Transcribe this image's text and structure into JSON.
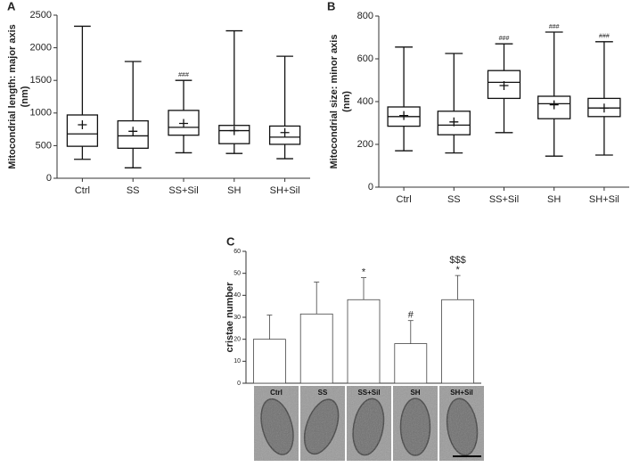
{
  "chart_data": [
    {
      "type": "box",
      "panel": "A",
      "ylabel": [
        "Mitocondrial length: major axis",
        "(nm)"
      ],
      "categories": [
        "Ctrl",
        "SS",
        "SS+Sil",
        "SH",
        "SH+Sil"
      ],
      "min": [
        290,
        160,
        390,
        380,
        300
      ],
      "q1": [
        490,
        460,
        660,
        530,
        520
      ],
      "median": [
        680,
        650,
        780,
        730,
        630
      ],
      "q3": [
        970,
        880,
        1040,
        810,
        800
      ],
      "max": [
        2330,
        1790,
        1500,
        2260,
        1870
      ],
      "mean": [
        820,
        720,
        840,
        730,
        700
      ],
      "annotations": [
        null,
        null,
        [
          "###"
        ],
        null,
        null
      ],
      "ylim": [
        0,
        2500
      ],
      "yticks": [
        0,
        500,
        1000,
        1500,
        2000,
        2500
      ]
    },
    {
      "type": "box",
      "panel": "B",
      "ylabel": [
        "Mitocondrial size: minor axis",
        "(nm)"
      ],
      "categories": [
        "Ctrl",
        "SS",
        "SS+Sil",
        "SH",
        "SH+Sil"
      ],
      "min": [
        170,
        160,
        255,
        145,
        150
      ],
      "q1": [
        285,
        245,
        415,
        320,
        330
      ],
      "median": [
        330,
        290,
        490,
        390,
        370
      ],
      "q3": [
        375,
        355,
        545,
        425,
        415
      ],
      "max": [
        655,
        625,
        670,
        725,
        680
      ],
      "mean": [
        335,
        305,
        475,
        385,
        370
      ],
      "annotations": [
        null,
        null,
        [
          "###"
        ],
        [
          "###"
        ],
        [
          "###"
        ]
      ],
      "ylim": [
        0,
        800
      ],
      "yticks": [
        0,
        200,
        400,
        600,
        800
      ]
    },
    {
      "type": "bar",
      "panel": "C",
      "ylabel": [
        "cristae number"
      ],
      "categories": [
        "Ctrl",
        "SS",
        "SS+Sil",
        "SH",
        "SH+Sil"
      ],
      "values": [
        20,
        31.5,
        38,
        18,
        38
      ],
      "errors": [
        11,
        14.5,
        10,
        10.5,
        11
      ],
      "annotations": [
        null,
        null,
        [
          "*"
        ],
        [
          "#"
        ],
        [
          "$$$",
          "*"
        ]
      ],
      "ylim": [
        0,
        60
      ],
      "yticks": [
        0,
        10,
        20,
        30,
        40,
        50,
        60
      ]
    }
  ]
}
